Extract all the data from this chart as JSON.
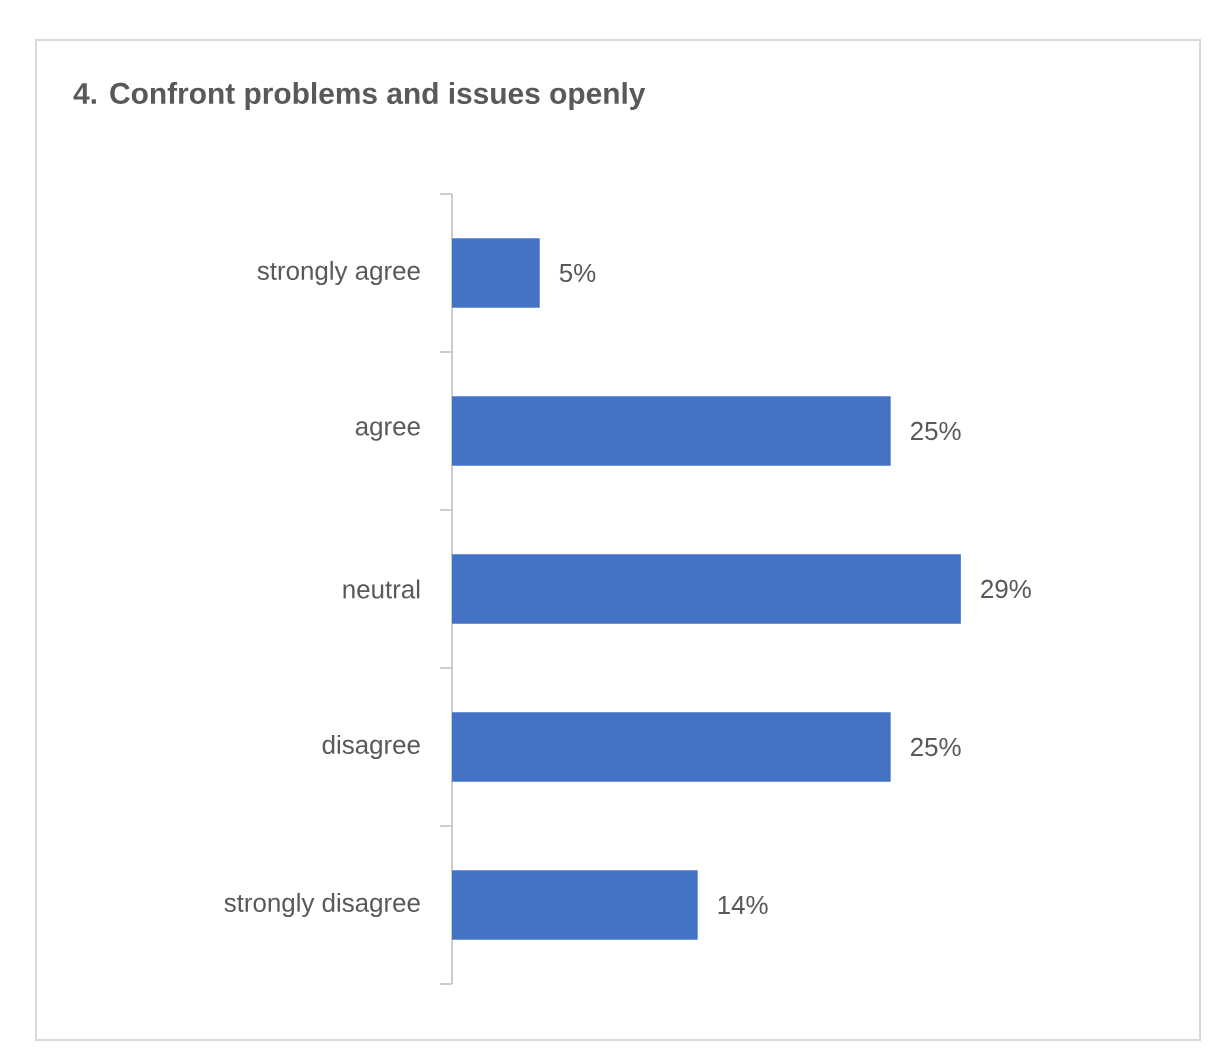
{
  "chart_data": {
    "type": "bar",
    "orientation": "horizontal",
    "title": "4. Confront problems and issues openly",
    "categories": [
      "strongly agree",
      "agree",
      "neutral",
      "disagree",
      "strongly disagree"
    ],
    "values": [
      5,
      25,
      29,
      25,
      14
    ],
    "value_labels": [
      "5%",
      "25%",
      "29%",
      "25%",
      "14%"
    ],
    "color": "#4472c4"
  }
}
